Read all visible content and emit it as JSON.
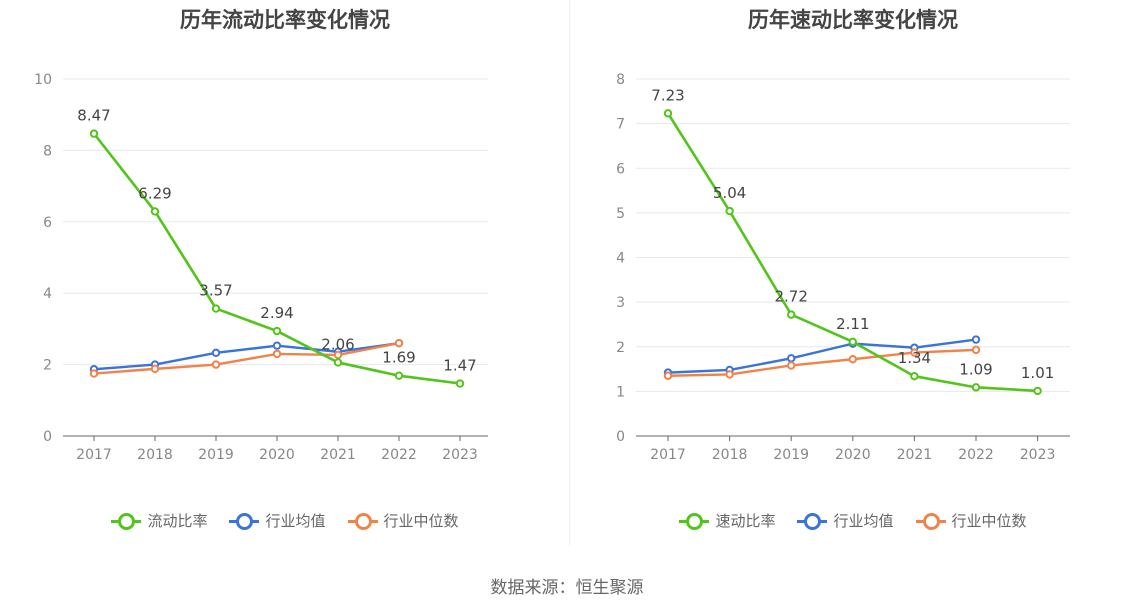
{
  "source_label": "数据来源：恒生聚源",
  "chart_data": [
    {
      "type": "line",
      "title": "历年流动比率变化情况",
      "x": [
        "2017",
        "2018",
        "2019",
        "2020",
        "2021",
        "2022",
        "2023"
      ],
      "ylim": [
        0,
        10
      ],
      "yticks": [
        0,
        2,
        4,
        6,
        8,
        10
      ],
      "grid": true,
      "legend_position": "bottom-center",
      "series": [
        {
          "name": "流动比率",
          "color": "#52c41a",
          "values": [
            8.47,
            6.29,
            3.57,
            2.94,
            2.06,
            1.69,
            1.47
          ],
          "labels": [
            "8.47",
            "6.29",
            "3.57",
            "2.94",
            "2.06",
            "1.69",
            "1.47"
          ]
        },
        {
          "name": "行业均值",
          "color": "#3a73d9",
          "values": [
            1.87,
            2.0,
            2.33,
            2.53,
            2.36,
            2.6,
            null
          ]
        },
        {
          "name": "行业中位数",
          "color": "#f0834a",
          "values": [
            1.75,
            1.88,
            2.0,
            2.3,
            2.27,
            2.6,
            null
          ]
        }
      ]
    },
    {
      "type": "line",
      "title": "历年速动比率变化情况",
      "x": [
        "2017",
        "2018",
        "2019",
        "2020",
        "2021",
        "2022",
        "2023"
      ],
      "ylim": [
        0,
        8
      ],
      "yticks": [
        0,
        1,
        2,
        3,
        4,
        5,
        6,
        7,
        8
      ],
      "grid": true,
      "legend_position": "bottom-center",
      "series": [
        {
          "name": "速动比率",
          "color": "#52c41a",
          "values": [
            7.23,
            5.04,
            2.72,
            2.11,
            1.34,
            1.09,
            1.01
          ],
          "labels": [
            "7.23",
            "5.04",
            "2.72",
            "2.11",
            "1.34",
            "1.09",
            "1.01"
          ]
        },
        {
          "name": "行业均值",
          "color": "#3a73d9",
          "values": [
            1.42,
            1.48,
            1.74,
            2.07,
            1.98,
            2.16,
            null
          ]
        },
        {
          "name": "行业中位数",
          "color": "#f0834a",
          "values": [
            1.35,
            1.38,
            1.58,
            1.72,
            1.87,
            1.93,
            null
          ]
        }
      ]
    }
  ]
}
